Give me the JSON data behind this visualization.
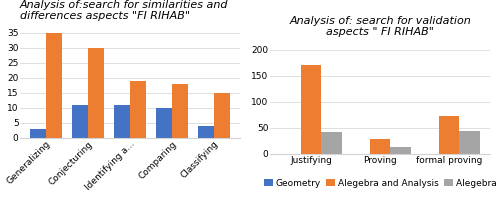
{
  "left": {
    "title": "Analysis of:search for similarities and\ndifferences aspects \"FI RIHAB\"",
    "categories": [
      "Generalizing",
      "Conjecturing",
      "Identifying a...",
      "Comparing",
      "Classifying"
    ],
    "geometry": [
      3,
      11,
      11,
      10,
      4
    ],
    "algebra": [
      35,
      30,
      19,
      18,
      15
    ],
    "ylim": [
      0,
      38
    ],
    "yticks": [
      0,
      5,
      10,
      15,
      20,
      25,
      30,
      35
    ],
    "legend": [
      "Geometry",
      "Alegebra and Analysis"
    ],
    "geo_color": "#4472c4",
    "alg_color": "#ed7d31"
  },
  "right": {
    "title": "Analysis of: search for validation\naspects \" FI RIHAB\"",
    "categories": [
      "Justifying",
      "Proving",
      "formal proving"
    ],
    "geometry": [
      0,
      0,
      0
    ],
    "algebra": [
      170,
      28,
      72
    ],
    "analysis": [
      42,
      13,
      44
    ],
    "ylim": [
      0,
      220
    ],
    "yticks": [
      0,
      50,
      100,
      150,
      200
    ],
    "legend": [
      "Geometry",
      "Alegebra and Analysis"
    ],
    "geo_color": "#4472c4",
    "alg_color": "#ed7d31",
    "anal_color": "#a5a5a5"
  },
  "bg_color": "#ffffff",
  "title_fontsize": 8.0,
  "tick_fontsize": 6.5,
  "legend_fontsize": 6.5
}
